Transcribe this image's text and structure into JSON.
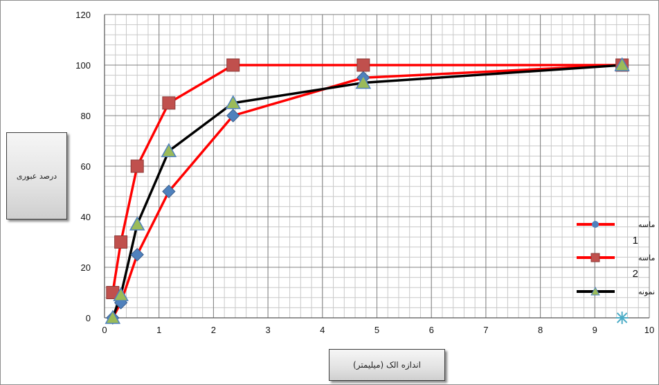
{
  "chart_data": {
    "type": "scatter",
    "title": "",
    "xlabel": "اندازه الک (میلیمتر)",
    "ylabel": "درصد عبوری",
    "xlim": [
      0,
      10
    ],
    "ylim": [
      0,
      120
    ],
    "x_ticks": [
      0,
      1,
      2,
      3,
      4,
      5,
      6,
      7,
      8,
      9,
      10
    ],
    "y_ticks": [
      0,
      20,
      40,
      60,
      80,
      100,
      120
    ],
    "grid": true,
    "legend_position": "right",
    "series": [
      {
        "name": "ماسه 1",
        "name_parts": [
          "ماسه",
          "1"
        ],
        "color": "#ff0000",
        "marker": "diamond",
        "marker_color": "#4f81bd",
        "points": [
          {
            "x": 0.15,
            "y": 0
          },
          {
            "x": 0.3,
            "y": 6
          },
          {
            "x": 0.6,
            "y": 25
          },
          {
            "x": 1.18,
            "y": 50
          },
          {
            "x": 2.36,
            "y": 80
          },
          {
            "x": 4.75,
            "y": 95
          },
          {
            "x": 9.5,
            "y": 100
          }
        ]
      },
      {
        "name": "ماسه 2",
        "name_parts": [
          "ماسه",
          "2"
        ],
        "color": "#ff0000",
        "marker": "square",
        "marker_color": "#c0504d",
        "points": [
          {
            "x": 0.15,
            "y": 10
          },
          {
            "x": 0.3,
            "y": 30
          },
          {
            "x": 0.6,
            "y": 60
          },
          {
            "x": 1.18,
            "y": 85
          },
          {
            "x": 2.36,
            "y": 100
          },
          {
            "x": 4.75,
            "y": 100
          },
          {
            "x": 9.5,
            "y": 100
          }
        ]
      },
      {
        "name": "نمونه",
        "name_parts": [
          "نمونه",
          ""
        ],
        "color": "#000000",
        "marker": "triangle",
        "marker_color": "#9bbb59",
        "points": [
          {
            "x": 0.15,
            "y": 0
          },
          {
            "x": 0.3,
            "y": 9
          },
          {
            "x": 0.6,
            "y": 37
          },
          {
            "x": 1.18,
            "y": 66
          },
          {
            "x": 2.36,
            "y": 85
          },
          {
            "x": 4.75,
            "y": 93
          },
          {
            "x": 9.5,
            "y": 100
          }
        ]
      }
    ],
    "extra_marker": {
      "x": 9.5,
      "y": 0,
      "shape": "asterisk",
      "color": "#4bacc6"
    }
  }
}
